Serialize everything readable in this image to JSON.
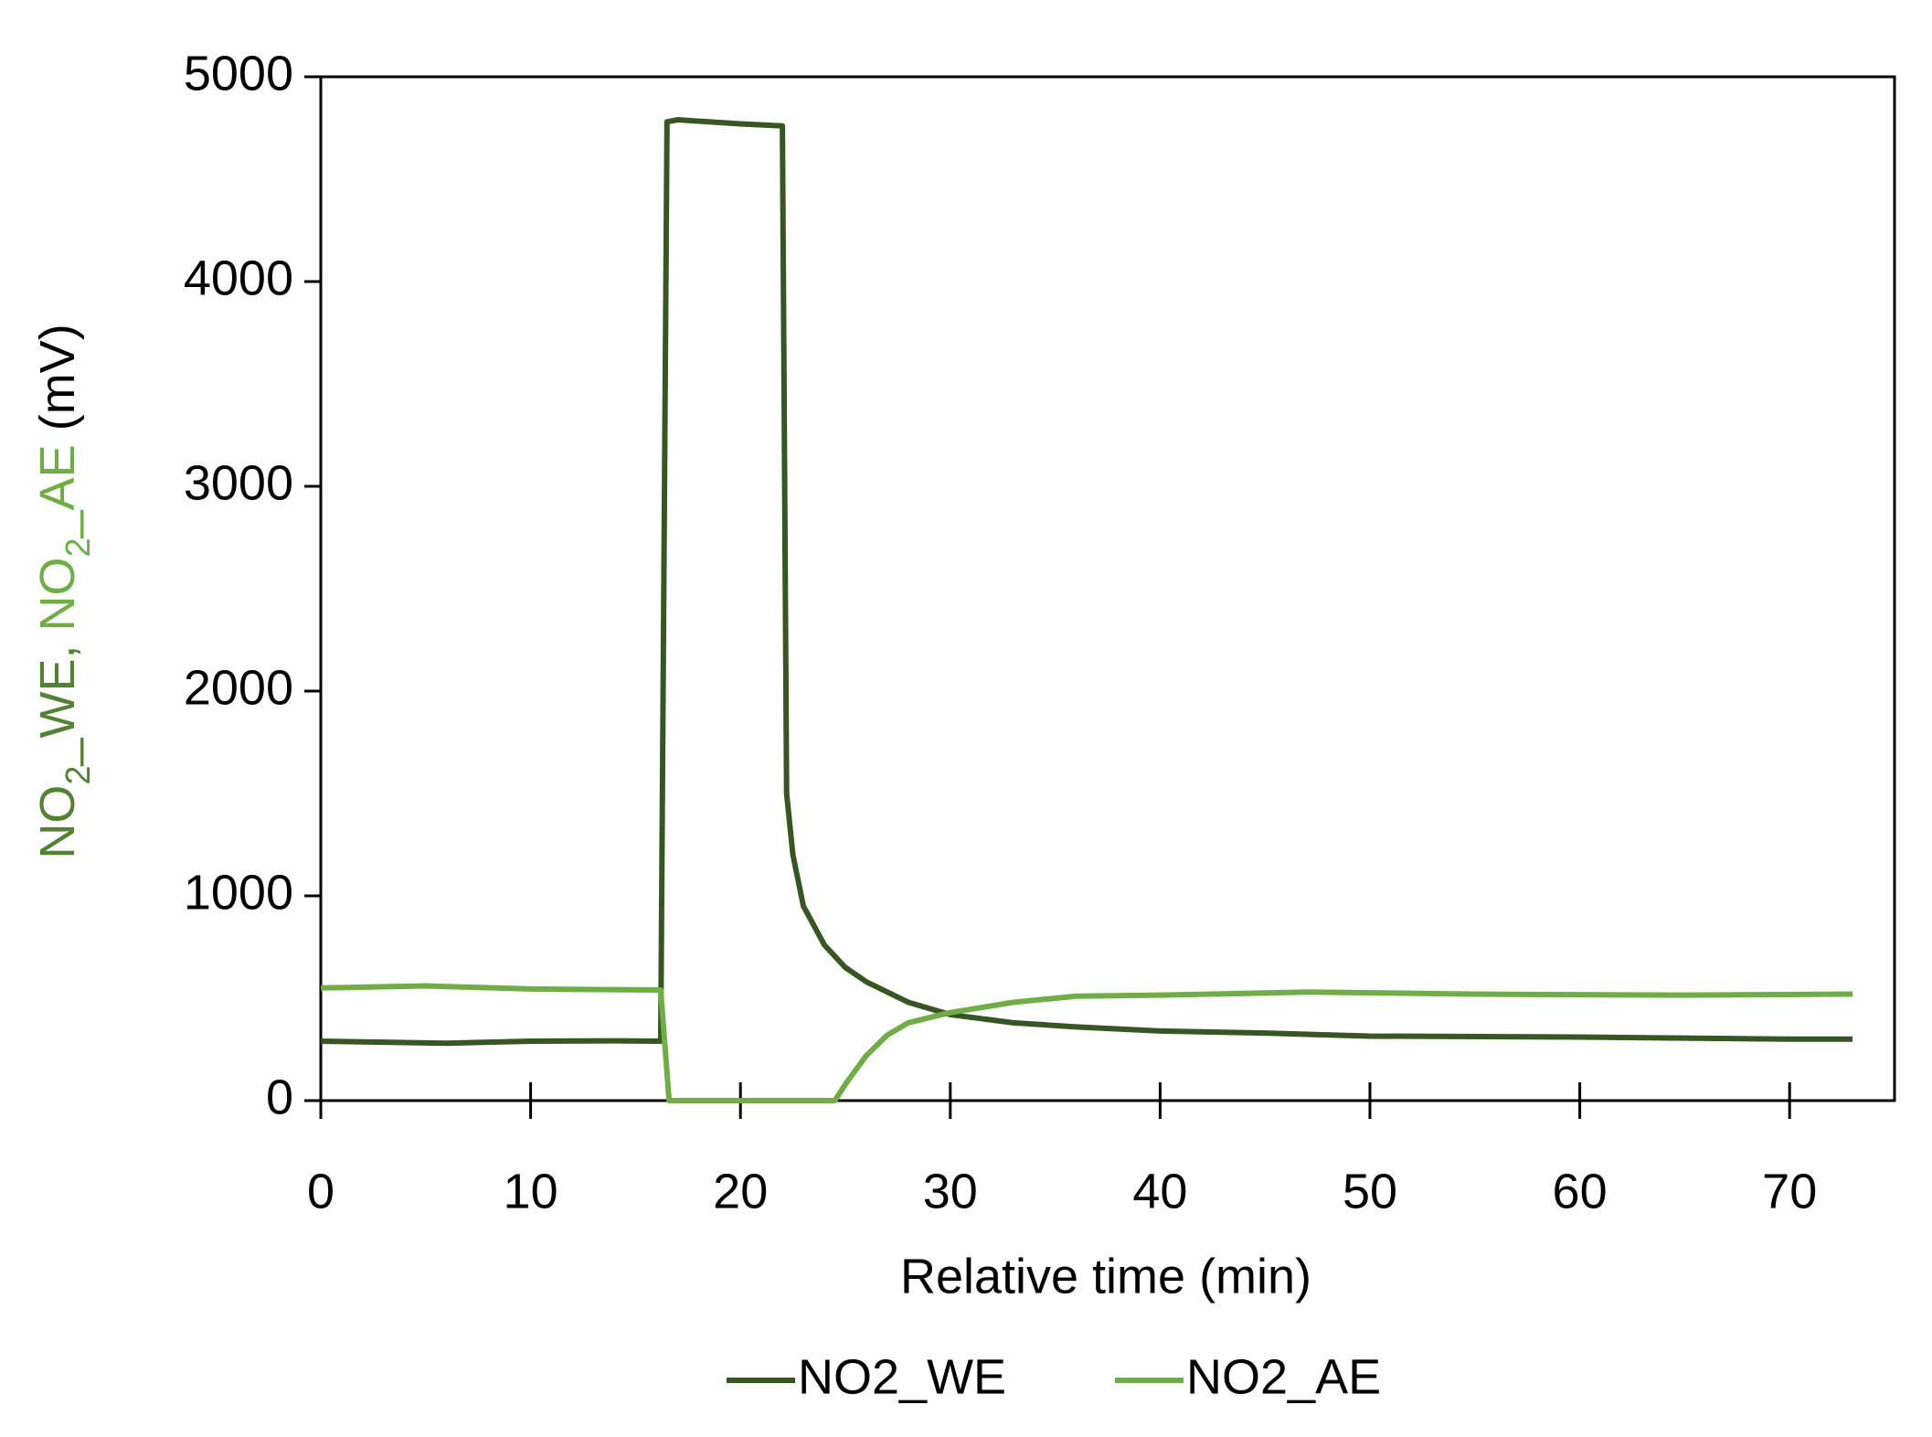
{
  "chart_data": {
    "type": "line",
    "xlabel": "Relative time (min)",
    "ylabel_parts": [
      {
        "text": "NO",
        "color": "#548235"
      },
      {
        "text": "2",
        "color": "#548235",
        "sub": true
      },
      {
        "text": "_WE, ",
        "color": "#548235"
      },
      {
        "text": "NO",
        "color": "#70ad47"
      },
      {
        "text": "2",
        "color": "#70ad47",
        "sub": true
      },
      {
        "text": "_AE",
        "color": "#70ad47"
      },
      {
        "text": " (mV)",
        "color": "#000000"
      }
    ],
    "xlim": [
      0,
      75
    ],
    "xticks": [
      0,
      10,
      20,
      30,
      40,
      50,
      60,
      70
    ],
    "ylim": [
      0,
      5000
    ],
    "yticks": [
      0,
      1000,
      2000,
      3000,
      4000,
      5000
    ],
    "legend": "bottom",
    "series": [
      {
        "name": "NO2_WE",
        "color": "#375623",
        "x": [
          0,
          3,
          6,
          10,
          14,
          16.2,
          16.5,
          17,
          20,
          22,
          22.2,
          22.5,
          23,
          24,
          25,
          26,
          28,
          30,
          33,
          36,
          40,
          45,
          50,
          60,
          70,
          73
        ],
        "values": [
          290,
          285,
          280,
          290,
          292,
          290,
          4780,
          4790,
          4770,
          4760,
          1500,
          1200,
          950,
          760,
          650,
          580,
          480,
          420,
          380,
          360,
          340,
          330,
          315,
          310,
          300,
          300
        ]
      },
      {
        "name": "NO2_AE",
        "color": "#70ad47",
        "x": [
          0,
          5,
          10,
          16.2,
          16.6,
          24.5,
          25,
          26,
          27,
          28,
          30,
          33,
          36,
          40,
          47,
          55,
          65,
          73
        ],
        "values": [
          550,
          560,
          545,
          540,
          0,
          0,
          80,
          220,
          320,
          380,
          430,
          480,
          510,
          515,
          530,
          520,
          515,
          520
        ]
      }
    ]
  }
}
